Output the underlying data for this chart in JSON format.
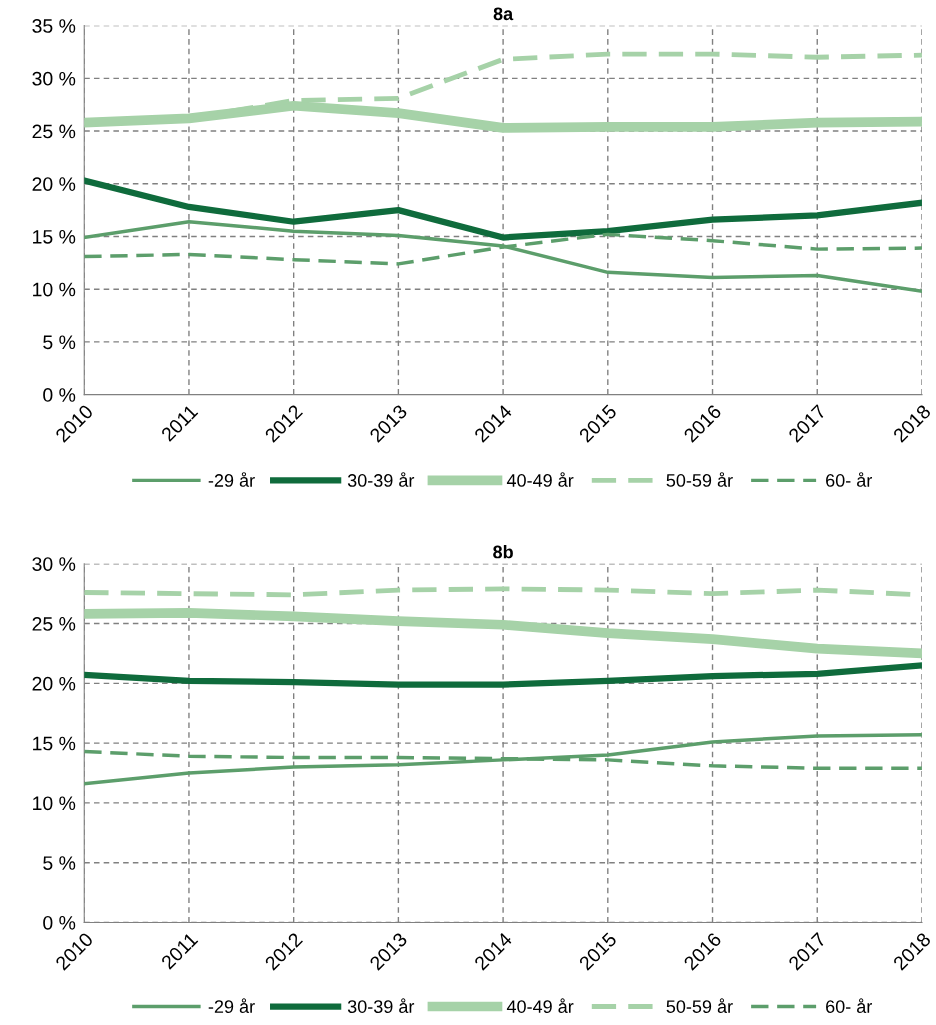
{
  "chart_data": [
    {
      "type": "line",
      "title": "8a",
      "categories": [
        "2010",
        "2011",
        "2012",
        "2013",
        "2014",
        "2015",
        "2016",
        "2017",
        "2018"
      ],
      "ylim": [
        0,
        35
      ],
      "yticks": [
        {
          "value": 0,
          "label": "0 %"
        },
        {
          "value": 5,
          "label": "5 %"
        },
        {
          "value": 10,
          "label": "10 %"
        },
        {
          "value": 15,
          "label": "15 %"
        },
        {
          "value": 20,
          "label": "20 %"
        },
        {
          "value": 25,
          "label": "25 %"
        },
        {
          "value": 30,
          "label": "30 %"
        },
        {
          "value": 35,
          "label": "35 %"
        }
      ],
      "grid": true,
      "legend": "bottom",
      "marker": "none",
      "series": [
        {
          "name": "-29 år",
          "color": "#5c9e6b",
          "line_style": "solid",
          "values": [
            14.9,
            16.4,
            15.5,
            15.1,
            14.1,
            11.6,
            11.1,
            11.3,
            9.8
          ]
        },
        {
          "name": "30-39 år",
          "color": "#0f6b3c",
          "line_style": "solid",
          "values": [
            20.3,
            17.8,
            16.4,
            17.5,
            14.9,
            15.5,
            16.6,
            17.0,
            18.2
          ]
        },
        {
          "name": "40-49 år",
          "color": "#a6d2a8",
          "line_style": "solid",
          "values": [
            25.8,
            26.2,
            27.4,
            26.7,
            25.3,
            25.4,
            25.4,
            25.8,
            25.9
          ]
        },
        {
          "name": "50-59 år",
          "color": "#a6d2a8",
          "line_style": "dashed",
          "values": [
            25.8,
            26.2,
            27.9,
            28.1,
            31.8,
            32.3,
            32.3,
            32.0,
            32.2
          ]
        },
        {
          "name": "60- år",
          "color": "#5c9e6b",
          "line_style": "dashed",
          "values": [
            13.1,
            13.3,
            12.8,
            12.4,
            14.0,
            15.2,
            14.6,
            13.8,
            13.9
          ]
        }
      ]
    },
    {
      "type": "line",
      "title": "8b",
      "categories": [
        "2010",
        "2011",
        "2012",
        "2013",
        "2014",
        "2015",
        "2016",
        "2017",
        "2018"
      ],
      "ylim": [
        0,
        30
      ],
      "yticks": [
        {
          "value": 0,
          "label": "0 %"
        },
        {
          "value": 5,
          "label": "5 %"
        },
        {
          "value": 10,
          "label": "10 %"
        },
        {
          "value": 15,
          "label": "15 %"
        },
        {
          "value": 20,
          "label": "20 %"
        },
        {
          "value": 25,
          "label": "25 %"
        },
        {
          "value": 30,
          "label": "30 %"
        }
      ],
      "grid": true,
      "legend": "bottom",
      "marker": "none",
      "series": [
        {
          "name": "-29 år",
          "color": "#5c9e6b",
          "line_style": "solid",
          "values": [
            11.6,
            12.5,
            13.0,
            13.2,
            13.6,
            14.0,
            15.1,
            15.6,
            15.7
          ]
        },
        {
          "name": "30-39 år",
          "color": "#0f6b3c",
          "line_style": "solid",
          "values": [
            20.7,
            20.2,
            20.1,
            19.9,
            19.9,
            20.2,
            20.6,
            20.8,
            21.5
          ]
        },
        {
          "name": "40-49 år",
          "color": "#a6d2a8",
          "line_style": "solid",
          "values": [
            25.8,
            25.9,
            25.6,
            25.2,
            24.9,
            24.2,
            23.7,
            22.9,
            22.5
          ]
        },
        {
          "name": "50-59 år",
          "color": "#a6d2a8",
          "line_style": "dashed",
          "values": [
            27.6,
            27.5,
            27.4,
            27.8,
            27.9,
            27.8,
            27.5,
            27.8,
            27.4
          ]
        },
        {
          "name": "60- år",
          "color": "#5c9e6b",
          "line_style": "dashed",
          "values": [
            14.3,
            13.9,
            13.8,
            13.8,
            13.7,
            13.6,
            13.1,
            12.9,
            12.9
          ]
        }
      ]
    }
  ]
}
